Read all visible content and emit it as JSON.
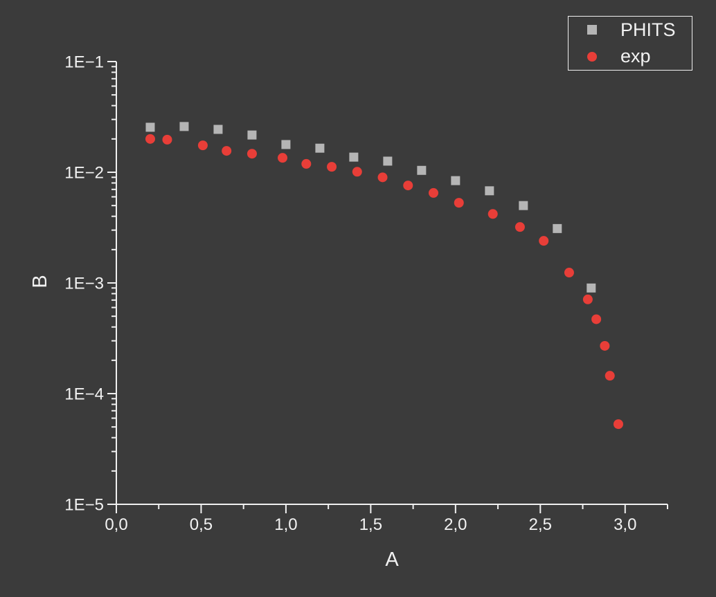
{
  "colors": {
    "background": "#3b3b3b",
    "foreground": "#f2f2f2",
    "axis": "#f0f0f0",
    "phits_gray": "#b5b5b5",
    "exp_red": "#e83e38"
  },
  "legend": {
    "items": [
      "PHITS",
      "exp"
    ]
  },
  "chart_data": {
    "type": "scatter",
    "title": "",
    "xlabel": "A",
    "ylabel": "B",
    "x_scale": "linear",
    "y_scale": "log",
    "xlim": [
      0,
      3.25
    ],
    "ylim": [
      1e-05,
      0.1
    ],
    "grid": false,
    "legend_position": "top-right",
    "x_major_ticks": [
      0,
      0.5,
      1.0,
      1.5,
      2.0,
      2.5,
      3.0
    ],
    "x_major_tick_labels": [
      "0,0",
      "0,5",
      "1,0",
      "1,5",
      "2,0",
      "2,5",
      "3,0"
    ],
    "x_minor_tick_step": 0.25,
    "y_major_ticks": [
      0.1,
      0.01,
      0.001,
      0.0001,
      1e-05
    ],
    "y_major_tick_labels": [
      "1E−1",
      "1E−2",
      "1E−3",
      "1E−4",
      "1E−5"
    ],
    "series": [
      {
        "name": "PHITS",
        "marker": "square",
        "color": "#b5b5b5",
        "x": [
          0.2,
          0.4,
          0.6,
          0.8,
          1.0,
          1.2,
          1.4,
          1.6,
          1.8,
          2.0,
          2.2,
          2.4,
          2.6,
          2.8
        ],
        "y": [
          0.0255,
          0.0259,
          0.0244,
          0.0217,
          0.0178,
          0.0165,
          0.0137,
          0.0126,
          0.0104,
          0.0084,
          0.0068,
          0.005,
          0.0031,
          0.0009
        ]
      },
      {
        "name": "exp",
        "marker": "circle",
        "color": "#e83e38",
        "x": [
          0.2,
          0.3,
          0.51,
          0.65,
          0.8,
          0.98,
          1.12,
          1.27,
          1.42,
          1.57,
          1.72,
          1.87,
          2.02,
          2.22,
          2.38,
          2.52,
          2.67,
          2.78,
          2.83,
          2.88,
          2.91,
          2.96
        ],
        "y": [
          0.02,
          0.0197,
          0.0175,
          0.0156,
          0.0147,
          0.0135,
          0.0119,
          0.0112,
          0.0101,
          0.009,
          0.0076,
          0.0065,
          0.0053,
          0.0042,
          0.0032,
          0.0024,
          0.00124,
          0.00071,
          0.00047,
          0.00027,
          0.000145,
          5.3e-05
        ]
      }
    ]
  }
}
